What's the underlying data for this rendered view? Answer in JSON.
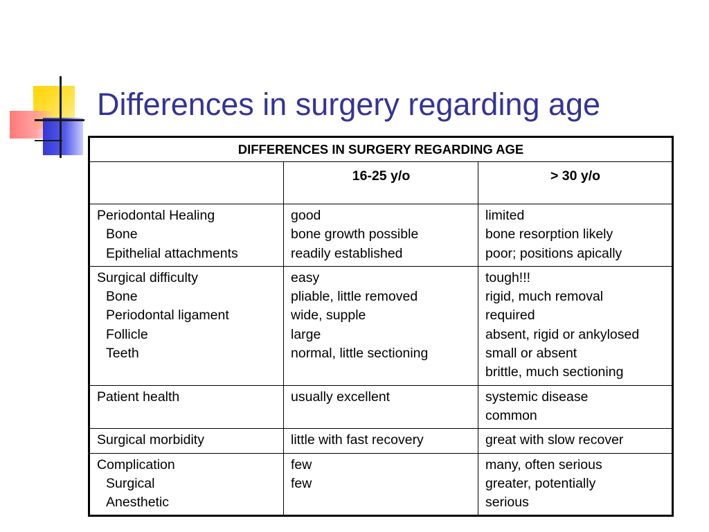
{
  "title": "Differences in surgery regarding age",
  "table": {
    "caption": "DIFFERENCES IN SURGERY REGARDING AGE",
    "columns": [
      "",
      "16-25 y/o",
      "> 30 y/o"
    ],
    "rows": [
      {
        "label": [
          "Periodontal Healing",
          "Bone",
          "Epithelial attachments"
        ],
        "young": [
          "good",
          "bone growth possible",
          "readily established"
        ],
        "old": [
          "limited",
          "bone resorption likely",
          "poor; positions apically"
        ]
      },
      {
        "label": [
          "Surgical difficulty",
          "Bone",
          "Periodontal ligament",
          "Follicle",
          "Teeth"
        ],
        "young": [
          "easy",
          "pliable, little removed",
          "wide, supple",
          "large",
          "normal, little sectioning"
        ],
        "old": [
          "tough!!!",
          "rigid, much removal",
          "required",
          "absent, rigid or ankylosed",
          "small or absent",
          "brittle, much sectioning"
        ]
      },
      {
        "label": [
          "Patient health"
        ],
        "young": [
          "usually excellent"
        ],
        "old": [
          "systemic disease",
          "common"
        ]
      },
      {
        "label": [
          "Surgical morbidity"
        ],
        "young": [
          "little with fast recovery"
        ],
        "old": [
          "great with slow recover"
        ]
      },
      {
        "label": [
          "Complication",
          "Surgical",
          "Anesthetic"
        ],
        "young": [
          "few",
          "few"
        ],
        "old": [
          "many, often serious",
          "greater, potentially",
          "serious"
        ]
      }
    ]
  }
}
